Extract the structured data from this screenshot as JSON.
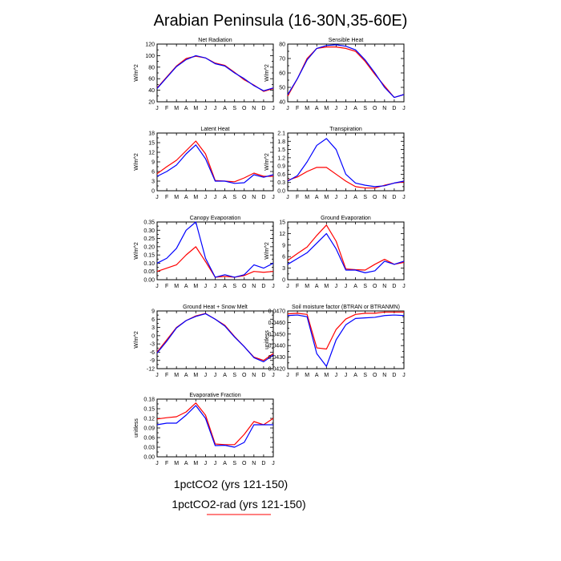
{
  "title": "Arabian Peninsula (16-30N,35-60E)",
  "months": [
    "J",
    "F",
    "M",
    "A",
    "M",
    "J",
    "J",
    "A",
    "S",
    "O",
    "N",
    "D",
    "J"
  ],
  "colors": {
    "red": "#ff0000",
    "blue": "#0000ff",
    "axis": "#000000"
  },
  "legend": [
    {
      "label": "1pctCO2 (yrs 121-150)",
      "color": "#0000ff"
    },
    {
      "label": "1pctCO2-rad (yrs 121-150)",
      "color": "#ff0000"
    }
  ],
  "chart_data": [
    {
      "type": "line",
      "title": "Net Radiation",
      "ylabel": "W/m^2",
      "ylim": [
        20,
        120
      ],
      "yticks": [
        20,
        30,
        40,
        50,
        60,
        70,
        80,
        90,
        100,
        110,
        120
      ],
      "yticklabels": [
        "20",
        "40",
        "60",
        "80",
        "100",
        "120"
      ],
      "series": [
        {
          "name": "1pctCO2 (yrs 121-150)",
          "color": "#0000ff",
          "values": [
            43,
            62,
            81,
            93,
            100,
            96,
            86,
            82,
            70,
            60,
            48,
            39,
            44
          ]
        },
        {
          "name": "1pctCO2-rad (yrs 121-150)",
          "color": "#ff0000",
          "values": [
            44,
            63,
            82,
            95,
            99,
            96,
            87,
            83,
            71,
            58,
            49,
            38,
            43
          ]
        }
      ]
    },
    {
      "type": "line",
      "title": "Sensible Heat",
      "ylabel": "W/m^2",
      "ylim": [
        40,
        80
      ],
      "yticks": [
        40,
        45,
        50,
        55,
        60,
        65,
        70,
        75,
        80
      ],
      "yticklabels": [
        "40",
        "50",
        "60",
        "70",
        "80"
      ],
      "series": [
        {
          "name": "1pctCO2 (yrs 121-150)",
          "color": "#0000ff",
          "values": [
            45,
            56,
            69,
            77,
            79,
            79.5,
            78.5,
            76,
            69,
            60,
            50,
            43,
            45
          ]
        },
        {
          "name": "1pctCO2-rad (yrs 121-150)",
          "color": "#ff0000",
          "values": [
            44,
            56,
            70,
            77,
            78,
            78,
            77,
            75,
            68,
            59,
            51,
            43,
            45
          ]
        }
      ]
    },
    {
      "type": "line",
      "title": "Latent Heat",
      "ylabel": "W/m^2",
      "ylim": [
        0,
        18
      ],
      "yticks": [
        0,
        1.5,
        3,
        4.5,
        6,
        7.5,
        9,
        10.5,
        12,
        13.5,
        15,
        16.5,
        18
      ],
      "yticklabels": [
        "0",
        "3",
        "6",
        "9",
        "12",
        "15",
        "18"
      ],
      "series": [
        {
          "name": "1pctCO2 (yrs 121-150)",
          "color": "#0000ff",
          "values": [
            4.5,
            6,
            8,
            11.5,
            14.3,
            10,
            3,
            3,
            2.3,
            2.5,
            5,
            4.2,
            5
          ]
        },
        {
          "name": "1pctCO2-rad (yrs 121-150)",
          "color": "#ff0000",
          "values": [
            5.3,
            7.5,
            9.5,
            12.5,
            15.5,
            11.5,
            3.2,
            3,
            2.8,
            4,
            5.5,
            4.5,
            4.5
          ]
        }
      ]
    },
    {
      "type": "line",
      "title": "Transpiration",
      "ylabel": "W/m^2",
      "ylim": [
        0,
        2.1
      ],
      "yticks": [
        0,
        0.15,
        0.3,
        0.45,
        0.6,
        0.75,
        0.9,
        1.05,
        1.2,
        1.35,
        1.5,
        1.65,
        1.8,
        1.95,
        2.1
      ],
      "yticklabels": [
        "0.0",
        "0.3",
        "0.6",
        "0.9",
        "1.2",
        "1.5",
        "1.8",
        "2.1"
      ],
      "series": [
        {
          "name": "1pctCO2 (yrs 121-150)",
          "color": "#0000ff",
          "values": [
            0.35,
            0.55,
            1.05,
            1.65,
            1.9,
            1.5,
            0.6,
            0.28,
            0.2,
            0.15,
            0.18,
            0.28,
            0.35
          ]
        },
        {
          "name": "1pctCO2-rad (yrs 121-150)",
          "color": "#ff0000",
          "values": [
            0.38,
            0.5,
            0.7,
            0.85,
            0.85,
            0.6,
            0.35,
            0.15,
            0.1,
            0.1,
            0.2,
            0.28,
            0.32
          ]
        }
      ]
    },
    {
      "type": "line",
      "title": "Canopy Evaporation",
      "ylabel": "W/m^2",
      "ylim": [
        0,
        0.35
      ],
      "yticks": [
        0,
        0.025,
        0.05,
        0.075,
        0.1,
        0.125,
        0.15,
        0.175,
        0.2,
        0.225,
        0.25,
        0.275,
        0.3,
        0.325,
        0.35
      ],
      "yticklabels": [
        "0.00",
        "0.05",
        "0.10",
        "0.15",
        "0.20",
        "0.25",
        "0.30",
        "0.35"
      ],
      "series": [
        {
          "name": "1pctCO2 (yrs 121-150)",
          "color": "#0000ff",
          "values": [
            0.1,
            0.13,
            0.19,
            0.3,
            0.35,
            0.13,
            0.015,
            0.03,
            0.015,
            0.03,
            0.09,
            0.07,
            0.1
          ]
        },
        {
          "name": "1pctCO2-rad (yrs 121-150)",
          "color": "#ff0000",
          "values": [
            0.05,
            0.07,
            0.09,
            0.15,
            0.2,
            0.11,
            0.015,
            0.02,
            0.015,
            0.025,
            0.05,
            0.045,
            0.05
          ]
        }
      ]
    },
    {
      "type": "line",
      "title": "Ground Evaporation",
      "ylabel": "W/m^2",
      "ylim": [
        0,
        15
      ],
      "yticks": [
        0,
        1.5,
        3,
        4.5,
        6,
        7.5,
        9,
        10.5,
        12,
        13.5,
        15
      ],
      "yticklabels": [
        "0",
        "3",
        "6",
        "9",
        "12",
        "15"
      ],
      "series": [
        {
          "name": "1pctCO2 (yrs 121-150)",
          "color": "#0000ff",
          "values": [
            4,
            5.5,
            7,
            9.5,
            12,
            8,
            2.5,
            2.5,
            1.8,
            2.3,
            4.8,
            4,
            4.8
          ]
        },
        {
          "name": "1pctCO2-rad (yrs 121-150)",
          "color": "#ff0000",
          "values": [
            5,
            6.8,
            8.5,
            11.5,
            14.2,
            10,
            2.8,
            2.6,
            2.5,
            4,
            5.3,
            4,
            4.5
          ]
        }
      ]
    },
    {
      "type": "line",
      "title": "Ground Heat + Snow Melt",
      "ylabel": "W/m^2",
      "ylim": [
        -12,
        9
      ],
      "yticks": [
        -12,
        -10.5,
        -9,
        -7.5,
        -6,
        -4.5,
        -3,
        -1.5,
        0,
        1.5,
        3,
        4.5,
        6,
        7.5,
        9
      ],
      "yticklabels": [
        "-12",
        "-9",
        "-6",
        "-3",
        "0",
        "3",
        "6",
        "9"
      ],
      "series": [
        {
          "name": "1pctCO2 (yrs 121-150)",
          "color": "#0000ff",
          "values": [
            -6.3,
            -2,
            2.8,
            5.5,
            7,
            8,
            6,
            3.5,
            -0.5,
            -4,
            -8,
            -9.5,
            -7
          ]
        },
        {
          "name": "1pctCO2-rad (yrs 121-150)",
          "color": "#ff0000",
          "values": [
            -6,
            -1.5,
            3,
            5.5,
            7.2,
            8.1,
            6,
            3.8,
            -0.3,
            -4,
            -7.8,
            -9,
            -6.5
          ]
        }
      ]
    },
    {
      "type": "line",
      "title": "Soil moisture factor (BTRAN or BTRANMN)",
      "ylabel": "unitless",
      "ylim": [
        0.042,
        0.047
      ],
      "yticks": [
        0.042,
        0.0425,
        0.043,
        0.0435,
        0.044,
        0.0445,
        0.045,
        0.0455,
        0.046,
        0.0465,
        0.047
      ],
      "yticklabels": [
        "0.0420",
        "0.0430",
        "0.0440",
        "0.0450",
        "0.0460",
        "0.0470"
      ],
      "series": [
        {
          "name": "1pctCO2 (yrs 121-150)",
          "color": "#0000ff",
          "values": [
            0.0466,
            0.04665,
            0.0465,
            0.0433,
            0.0422,
            0.0445,
            0.0458,
            0.04635,
            0.0464,
            0.04645,
            0.0466,
            0.04665,
            0.0466
          ]
        },
        {
          "name": "1pctCO2-rad (yrs 121-150)",
          "color": "#ff0000",
          "values": [
            0.04675,
            0.0468,
            0.0467,
            0.0438,
            0.0437,
            0.0454,
            0.0463,
            0.0467,
            0.0468,
            0.0468,
            0.0469,
            0.0469,
            0.0469
          ]
        }
      ]
    },
    {
      "type": "line",
      "title": "Evaporative Fraction",
      "ylabel": "unitless",
      "ylim": [
        0,
        0.18
      ],
      "yticks": [
        0,
        0.015,
        0.03,
        0.045,
        0.06,
        0.075,
        0.09,
        0.105,
        0.12,
        0.135,
        0.15,
        0.165,
        0.18
      ],
      "yticklabels": [
        "0.00",
        "0.03",
        "0.06",
        "0.09",
        "0.12",
        "0.15",
        "0.18"
      ],
      "series": [
        {
          "name": "1pctCO2 (yrs 121-150)",
          "color": "#0000ff",
          "values": [
            0.1,
            0.105,
            0.105,
            0.13,
            0.16,
            0.12,
            0.035,
            0.036,
            0.03,
            0.045,
            0.1,
            0.1,
            0.1
          ]
        },
        {
          "name": "1pctCO2-rad (yrs 121-150)",
          "color": "#ff0000",
          "values": [
            0.118,
            0.122,
            0.125,
            0.14,
            0.168,
            0.13,
            0.04,
            0.038,
            0.038,
            0.07,
            0.11,
            0.1,
            0.12
          ]
        }
      ]
    }
  ]
}
